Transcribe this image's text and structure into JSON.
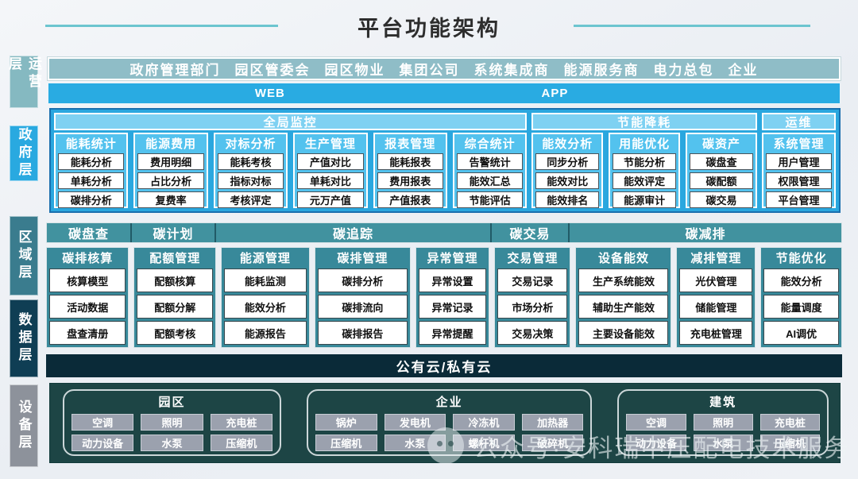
{
  "title": "平台功能架构",
  "layers": [
    {
      "label": "运营层"
    },
    {
      "label": "政府层"
    },
    {
      "label": "区域层"
    },
    {
      "label": "数据层"
    },
    {
      "label": "设备层"
    }
  ],
  "stakeholders": [
    "政府管理部门",
    "园区管委会",
    "园区物业",
    "集团公司",
    "系统集成商",
    "能源服务商",
    "电力总包",
    "企业"
  ],
  "channels": [
    "WEB",
    "APP"
  ],
  "gov_band": {
    "groups": [
      {
        "title": "全局监控",
        "flex": 6.4,
        "columns": [
          {
            "title": "能耗统计",
            "items": [
              "能耗分析",
              "单耗分析",
              "碳排分析"
            ]
          },
          {
            "title": "能源费用",
            "items": [
              "费用明细",
              "占比分析",
              "复费率"
            ]
          },
          {
            "title": "对标分析",
            "items": [
              "能耗考核",
              "指标对标",
              "考核评定"
            ]
          },
          {
            "title": "生产管理",
            "items": [
              "产值对比",
              "单耗对比",
              "元万产值"
            ]
          },
          {
            "title": "报表管理",
            "items": [
              "能耗报表",
              "费用报表",
              "产值报表"
            ]
          },
          {
            "title": "综合统计",
            "items": [
              "告警统计",
              "能效汇总",
              "节能评估"
            ]
          }
        ]
      },
      {
        "title": "节能降耗",
        "flex": 3.05,
        "columns": [
          {
            "title": "能效分析",
            "items": [
              "同步分析",
              "能效对比",
              "能效排名"
            ]
          },
          {
            "title": "用能优化",
            "items": [
              "节能分析",
              "能效评定",
              "能源审计"
            ]
          },
          {
            "title": "碳资产",
            "items": [
              "碳盘查",
              "碳配额",
              "碳交易"
            ]
          }
        ]
      },
      {
        "title": "运维",
        "flex": 1.0,
        "columns": [
          {
            "title": "系统管理",
            "items": [
              "用户管理",
              "权限管理",
              "平台管理"
            ]
          }
        ]
      }
    ]
  },
  "carbon_band": {
    "headers": [
      {
        "label": "碳盘查",
        "flex": 1.05
      },
      {
        "label": "碳计划",
        "flex": 1.04
      },
      {
        "label": "碳追踪",
        "flex": 3.45
      },
      {
        "label": "碳交易",
        "flex": 0.96
      },
      {
        "label": "碳减排",
        "flex": 3.42
      }
    ],
    "columns": [
      {
        "title": "碳排核算",
        "flex": 1.05,
        "items": [
          "核算模型",
          "活动数据",
          "盘查清册"
        ]
      },
      {
        "title": "配额管理",
        "flex": 1.04,
        "items": [
          "配额核算",
          "配额分解",
          "配额考核"
        ]
      },
      {
        "title": "能源管理",
        "flex": 1.13,
        "items": [
          "能耗监测",
          "能效分析",
          "能源报告"
        ]
      },
      {
        "title": "碳排管理",
        "flex": 1.23,
        "items": [
          "碳排分析",
          "碳排流向",
          "碳排报告"
        ]
      },
      {
        "title": "异常管理",
        "flex": 0.93,
        "items": [
          "异常设置",
          "异常记录",
          "异常提醒"
        ]
      },
      {
        "title": "交易管理",
        "flex": 0.96,
        "items": [
          "交易记录",
          "市场分析",
          "交易决策"
        ]
      },
      {
        "title": "设备能效",
        "flex": 1.23,
        "items": [
          "生产系统能效",
          "辅助生产能效",
          "主要设备能效"
        ]
      },
      {
        "title": "减排管理",
        "flex": 1.0,
        "items": [
          "光伏管理",
          "储能管理",
          "充电桩管理"
        ]
      },
      {
        "title": "节能优化",
        "flex": 1.03,
        "items": [
          "能效分析",
          "能量调度",
          "AI调优"
        ]
      }
    ]
  },
  "cloud_bar": "公有云/私有云",
  "device_band": {
    "groups": [
      {
        "title": "园区",
        "flex": 27,
        "rows": [
          [
            "空调",
            "照明",
            "充电桩"
          ],
          [
            "动力设备",
            "水泵",
            "压缩机"
          ]
        ]
      },
      {
        "title": "企业",
        "flex": 36,
        "rows": [
          [
            "锅炉",
            "发电机",
            "冷冻机",
            "加热器"
          ],
          [
            "压缩机",
            "水泵",
            "螺杆机",
            "破碎机"
          ]
        ]
      },
      {
        "title": "建筑",
        "flex": 26,
        "rows": [
          [
            "空调",
            "照明",
            "充电桩"
          ],
          [
            "动力设备",
            "水泵",
            "压缩机"
          ]
        ]
      }
    ]
  },
  "watermark": {
    "icon": "wechat-icon",
    "text": "公众号·安科瑞中压配电技术服务"
  },
  "colors": {
    "title_line": "#6cc5cf",
    "stakeholder_bar": "#8fbdc7",
    "channel_bar": "#29abe2",
    "gov_band_bg": "#2aa7df",
    "gov_band_border": "#1a6fae",
    "gov_group_header_bg": "#7ed1f2",
    "gov_column_bg": "#53c2ee",
    "carbon_header_bg": "#41929f",
    "carbon_column_bg": "#38899a",
    "cloud_bar_bg": "#0a2a38",
    "device_band_bg": "#1d4545",
    "device_button_bg": "#9ba1ae",
    "layer_operation": "#85b9c1",
    "layer_government": "#29a9e0",
    "layer_region": "#3a7c8e",
    "layer_data": "#0f3e54",
    "layer_device": "#8d929b"
  }
}
